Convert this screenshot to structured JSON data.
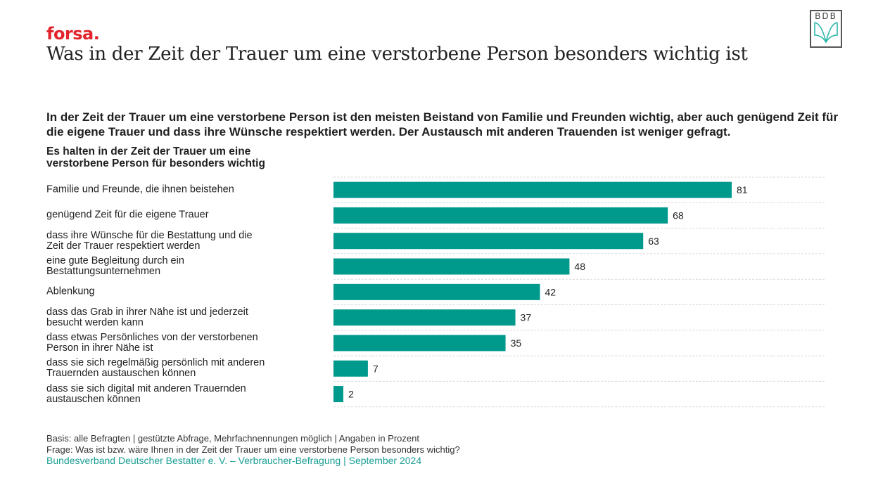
{
  "header": {
    "brand": "forsa.",
    "title": "Was in der Zeit der Trauer um eine verstorbene Person besonders wichtig ist",
    "logo_text": "BDB",
    "logo_icon": "open-book-icon"
  },
  "lead_text": "In der Zeit der Trauer um eine verstorbene Person ist den meisten Beistand von Familie und Freunden wichtig, aber auch genügend Zeit für die eigene Trauer und dass ihre Wünsche respektiert werden. Der Austausch mit anderen Trauenden ist weniger gefragt.",
  "subheading_lines": [
    "Es halten in der Zeit der Trauer um eine",
    "verstorbene Person für besonders wichtig"
  ],
  "colors": {
    "bar": "#009a8c",
    "brand_red": "#e3232b",
    "source_teal": "#1a9e94",
    "gridline": "#d9d9d9"
  },
  "chart_data": {
    "type": "bar",
    "orientation": "horizontal",
    "title": "Es halten in der Zeit der Trauer um eine verstorbene Person für besonders wichtig",
    "xlabel": "",
    "ylabel": "",
    "unit": "Prozent",
    "xlim": [
      0,
      100
    ],
    "grid": true,
    "legend": "none",
    "categories": [
      "Familie und Freunde, die ihnen beistehen",
      "genügend Zeit für die eigene Trauer",
      "dass ihre Wünsche für die Bestattung und die Zeit der Trauer respektiert werden",
      "eine gute Begleitung durch ein Bestattungsunternehmen",
      "Ablenkung",
      "dass das Grab in ihrer Nähe ist und jederzeit besucht werden kann",
      "dass etwas Persönliches von der verstorbenen Person in ihrer Nähe ist",
      "dass sie sich regelmäßig persönlich mit anderen Trauernden austauschen können",
      "dass sie sich digital mit anderen Trauernden austauschen können"
    ],
    "category_label_lines": [
      [
        "Familie und Freunde, die ihnen beistehen"
      ],
      [
        "genügend Zeit für die eigene Trauer"
      ],
      [
        "dass ihre Wünsche für die Bestattung und die",
        "Zeit der Trauer respektiert werden"
      ],
      [
        "eine gute Begleitung durch ein",
        "Bestattungsunternehmen"
      ],
      [
        "Ablenkung"
      ],
      [
        "dass das Grab in ihrer Nähe ist und jederzeit",
        "besucht werden kann"
      ],
      [
        "dass etwas Persönliches von der verstorbenen",
        "Person in ihrer Nähe ist"
      ],
      [
        "dass sie sich regelmäßig persönlich mit anderen",
        "Trauernden austauschen können"
      ],
      [
        "dass sie sich digital mit anderen Trauernden",
        "austauschen können"
      ]
    ],
    "values": [
      81,
      68,
      63,
      48,
      42,
      37,
      35,
      7,
      2
    ]
  },
  "footer": {
    "basis": "Basis: alle Befragten | gestützte Abfrage, Mehrfachnennungen möglich | Angaben in Prozent",
    "question": "Frage: Was ist bzw. wäre Ihnen in der Zeit der Trauer um eine verstorbene Person besonders wichtig?",
    "source": "Bundesverband Deutscher Bestatter e. V. – Verbraucher-Befragung | September 2024"
  }
}
